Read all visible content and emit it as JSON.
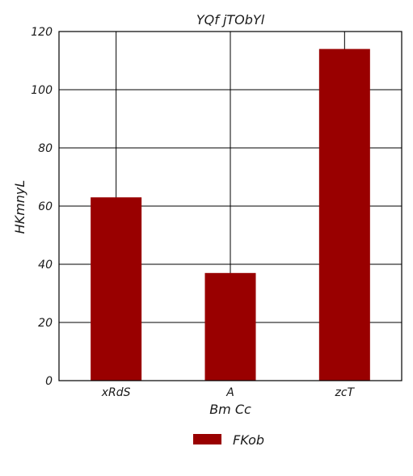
{
  "chart_data": {
    "type": "bar",
    "title": "YQf jTObYl",
    "xlabel": "Bm Cc",
    "ylabel": "HKmnyL",
    "categories": [
      "xRdS",
      "A",
      "zcT"
    ],
    "series": [
      {
        "name": "FKob",
        "values": [
          63,
          37,
          114
        ],
        "color": "#990000"
      }
    ],
    "ylim": [
      0,
      120
    ],
    "yticks": [
      "0",
      "20",
      "40",
      "60",
      "80",
      "100",
      "120"
    ],
    "grid": true,
    "legend_position": "bottom"
  }
}
